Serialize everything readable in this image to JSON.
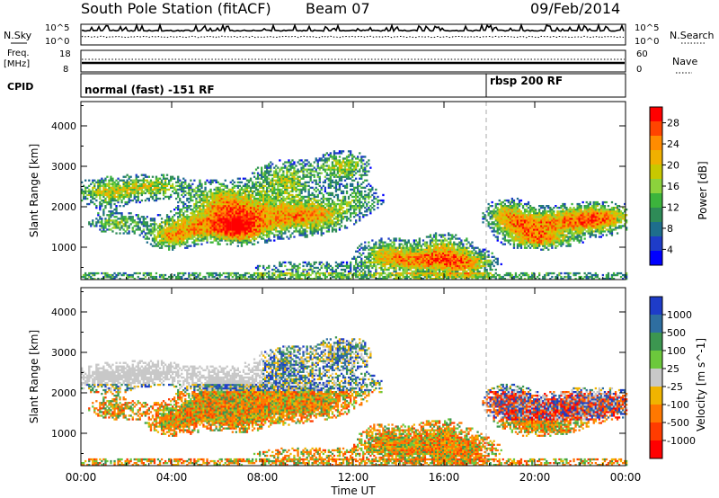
{
  "header": {
    "title": "South Pole Station (fitACF)",
    "beam": "Beam 07",
    "date": "09/Feb/2014"
  },
  "noise_panel": {
    "left_label": "N.Sky",
    "left_ticks": [
      "10^5",
      "10^0"
    ],
    "right_label": "N.Search",
    "right_ticks": [
      "10^5",
      "10^0"
    ]
  },
  "freq_panel": {
    "left_label_1": "Freq.",
    "left_label_2": "[MHz]",
    "left_ticks": [
      "18",
      "8"
    ],
    "right_label": "Nave",
    "right_ticks": [
      "60",
      "0"
    ]
  },
  "cpid_panel": {
    "label": "CPID",
    "mode_1": "normal (fast) -151 RF",
    "mode_2": "rbsp 200 RF"
  },
  "chart_data": [
    {
      "type": "heatmap",
      "title": "",
      "ylabel": "Slant Range [km]",
      "xlabel": "",
      "xlim": [
        0,
        24
      ],
      "ylim": [
        200,
        4600
      ],
      "y_ticks": [
        1000,
        2000,
        3000,
        4000
      ],
      "x_ticks": [
        "00:00",
        "04:00",
        "08:00",
        "12:00",
        "16:00",
        "20:00",
        "00:00"
      ],
      "colorbar": {
        "label": "Power [dB]",
        "ticks": [
          "28",
          "24",
          "20",
          "16",
          "12",
          "8",
          "4"
        ],
        "colors": [
          "#ff0000",
          "#ff4400",
          "#ff8c00",
          "#f0b000",
          "#c8c800",
          "#8cd23c",
          "#3cb43c",
          "#2e8b57",
          "#1e6e8c",
          "#1e3cc8",
          "#0000ff"
        ]
      }
    },
    {
      "type": "heatmap",
      "title": "",
      "ylabel": "Slant Range [km]",
      "xlabel": "Time UT",
      "xlim": [
        0,
        24
      ],
      "ylim": [
        200,
        4600
      ],
      "y_ticks": [
        1000,
        2000,
        3000,
        4000
      ],
      "x_ticks": [
        "00:00",
        "04:00",
        "08:00",
        "12:00",
        "16:00",
        "20:00",
        "00:00"
      ],
      "colorbar": {
        "label": "Velocity [m s^-1]",
        "ticks": [
          "1000",
          "500",
          "100",
          "25",
          "-25",
          "-100",
          "-500",
          "-1000"
        ],
        "colors": [
          "#1e3cc8",
          "#2e6ea0",
          "#3c9650",
          "#6cc83c",
          "#c8c8c8",
          "#f0b400",
          "#ff7800",
          "#ff3c00",
          "#ff0000"
        ]
      }
    }
  ]
}
